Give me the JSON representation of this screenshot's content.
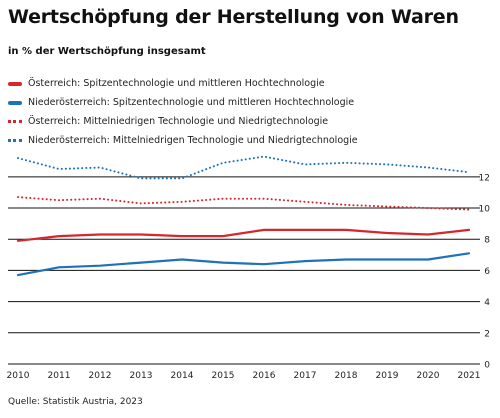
{
  "title": "Wertschöpfung der Herstellung von Waren",
  "subtitle": "in % der Wertschöpfung insgesamt",
  "source": "Quelle: Statistik Austria, 2023",
  "colors": {
    "red": "#d7262e",
    "blue": "#1f72b8",
    "grid": "#111111"
  },
  "chart_data": {
    "type": "line",
    "x": [
      2010,
      2011,
      2012,
      2013,
      2014,
      2015,
      2016,
      2017,
      2018,
      2019,
      2020,
      2021
    ],
    "ylim": [
      0,
      12
    ],
    "yticks": [
      0,
      2,
      4,
      6,
      8,
      10,
      12
    ],
    "series": [
      {
        "name": "Österreich: Spitzentechnologie und mittleren Hochtechnologie",
        "color": "#d7262e",
        "style": "solid",
        "values": [
          7.9,
          8.2,
          8.3,
          8.3,
          8.2,
          8.2,
          8.6,
          8.6,
          8.6,
          8.4,
          8.3,
          8.6
        ]
      },
      {
        "name": "Niederösterreich: Spitzentechnologie und mittleren Hochtechnologie",
        "color": "#1f72b8",
        "style": "solid",
        "values": [
          5.7,
          6.2,
          6.3,
          6.5,
          6.7,
          6.5,
          6.4,
          6.6,
          6.7,
          6.7,
          6.7,
          7.1
        ]
      },
      {
        "name": "Österreich: Mittelniedrigen Technologie und Niedrigtechnologie",
        "color": "#d7262e",
        "style": "dotted",
        "values": [
          10.7,
          10.5,
          10.6,
          10.3,
          10.4,
          10.6,
          10.6,
          10.4,
          10.2,
          10.1,
          10.0,
          9.9
        ]
      },
      {
        "name": "Niederösterreich: Mittelniedrigen Technologie und Niedrigtechnologie",
        "color": "#1f72b8",
        "style": "dotted",
        "values": [
          13.2,
          12.5,
          12.6,
          11.9,
          11.9,
          12.9,
          13.3,
          12.8,
          12.9,
          12.8,
          12.6,
          12.3
        ]
      }
    ]
  }
}
